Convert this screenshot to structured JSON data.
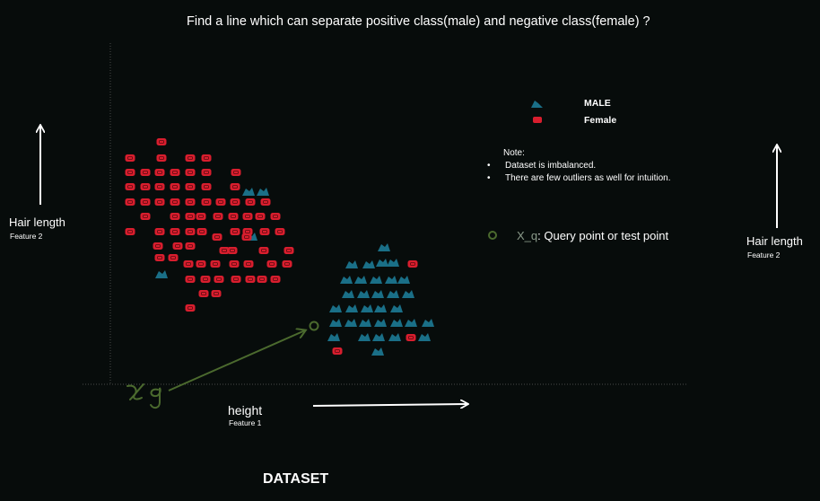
{
  "title": "Find a line which can separate  positive class(male) and negative class(female) ?",
  "legend": {
    "male": "MALE",
    "female": "Female"
  },
  "note": {
    "title": "Note:",
    "items": [
      "Dataset is imbalanced.",
      "There are few outliers as well for intuition."
    ]
  },
  "query": {
    "symbol": "X_q",
    "text": ":  Query point or  test point"
  },
  "left_y_axis": {
    "label": "Hair length",
    "sublabel": "Feature 2"
  },
  "right_y_axis": {
    "label": "Hair length",
    "sublabel": "Feature 2"
  },
  "x_axis": {
    "label": "height",
    "sublabel": "Feature 1"
  },
  "handwritten_annotation": "x_q",
  "footer": "DATASET",
  "colors": {
    "background": "#070c0b",
    "male": "#1a6f87",
    "female": "#d81e2e",
    "query": "#4b6a2e",
    "axis": "#4a4a4a",
    "text": "#ffffff"
  },
  "chart_data": {
    "type": "scatter",
    "series": [
      {
        "name": "MALE",
        "points": [
          [
            277,
            214
          ],
          [
            293,
            214
          ],
          [
            280,
            264
          ],
          [
            180,
            306
          ],
          [
            428,
            276
          ],
          [
            392,
            295
          ],
          [
            411,
            295
          ],
          [
            426,
            293
          ],
          [
            438,
            293
          ],
          [
            386,
            312
          ],
          [
            402,
            312
          ],
          [
            419,
            312
          ],
          [
            436,
            312
          ],
          [
            450,
            312
          ],
          [
            388,
            328
          ],
          [
            405,
            328
          ],
          [
            421,
            328
          ],
          [
            438,
            328
          ],
          [
            455,
            328
          ],
          [
            374,
            344
          ],
          [
            392,
            344
          ],
          [
            409,
            344
          ],
          [
            424,
            344
          ],
          [
            442,
            344
          ],
          [
            374,
            360
          ],
          [
            391,
            360
          ],
          [
            407,
            360
          ],
          [
            424,
            360
          ],
          [
            442,
            360
          ],
          [
            458,
            360
          ],
          [
            477,
            360
          ],
          [
            372,
            376
          ],
          [
            406,
            376
          ],
          [
            422,
            376
          ],
          [
            440,
            376
          ],
          [
            473,
            376
          ],
          [
            421,
            392
          ]
        ]
      },
      {
        "name": "Female",
        "points": [
          [
            180,
            158
          ],
          [
            145,
            176
          ],
          [
            180,
            176
          ],
          [
            212,
            176
          ],
          [
            230,
            176
          ],
          [
            145,
            192
          ],
          [
            162,
            192
          ],
          [
            178,
            192
          ],
          [
            195,
            192
          ],
          [
            212,
            192
          ],
          [
            230,
            192
          ],
          [
            263,
            192
          ],
          [
            145,
            208
          ],
          [
            162,
            208
          ],
          [
            178,
            208
          ],
          [
            195,
            208
          ],
          [
            212,
            208
          ],
          [
            230,
            208
          ],
          [
            262,
            208
          ],
          [
            145,
            225
          ],
          [
            162,
            225
          ],
          [
            178,
            225
          ],
          [
            195,
            225
          ],
          [
            212,
            225
          ],
          [
            230,
            225
          ],
          [
            246,
            225
          ],
          [
            262,
            225
          ],
          [
            279,
            225
          ],
          [
            296,
            225
          ],
          [
            162,
            241
          ],
          [
            195,
            241
          ],
          [
            212,
            241
          ],
          [
            224,
            241
          ],
          [
            243,
            241
          ],
          [
            260,
            241
          ],
          [
            276,
            241
          ],
          [
            290,
            241
          ],
          [
            307,
            241
          ],
          [
            145,
            258
          ],
          [
            178,
            258
          ],
          [
            195,
            258
          ],
          [
            212,
            258
          ],
          [
            225,
            258
          ],
          [
            262,
            258
          ],
          [
            276,
            258
          ],
          [
            295,
            258
          ],
          [
            312,
            258
          ],
          [
            176,
            274
          ],
          [
            198,
            274
          ],
          [
            212,
            274
          ],
          [
            242,
            264
          ],
          [
            275,
            264
          ],
          [
            250,
            279
          ],
          [
            259,
            279
          ],
          [
            294,
            279
          ],
          [
            322,
            279
          ],
          [
            178,
            287
          ],
          [
            193,
            287
          ],
          [
            210,
            294
          ],
          [
            224,
            294
          ],
          [
            240,
            294
          ],
          [
            261,
            294
          ],
          [
            277,
            294
          ],
          [
            303,
            294
          ],
          [
            320,
            294
          ],
          [
            460,
            294
          ],
          [
            212,
            311
          ],
          [
            229,
            311
          ],
          [
            244,
            311
          ],
          [
            263,
            311
          ],
          [
            279,
            311
          ],
          [
            292,
            311
          ],
          [
            307,
            311
          ],
          [
            227,
            327
          ],
          [
            241,
            327
          ],
          [
            212,
            343
          ],
          [
            458,
            376
          ],
          [
            376,
            391
          ]
        ]
      }
    ],
    "query_point": [
      350,
      363
    ]
  }
}
